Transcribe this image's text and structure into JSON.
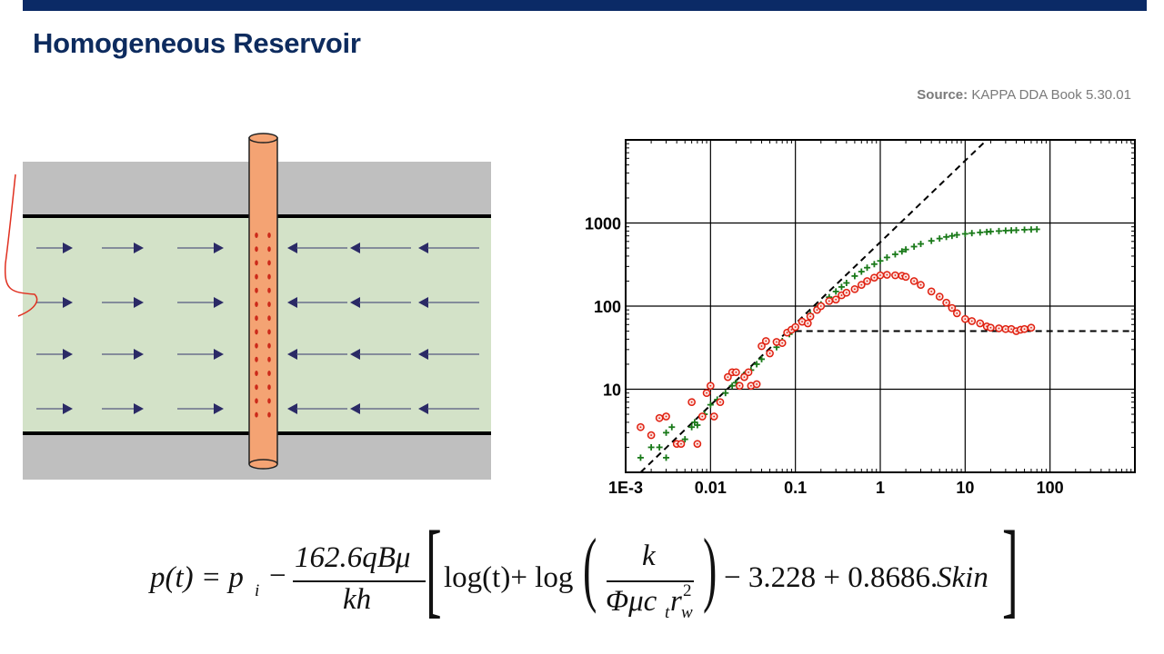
{
  "slide": {
    "title": "Homogeneous Reservoir",
    "source_label": "Source:",
    "source_text": "KAPPA DDA Book 5.30.01"
  },
  "colors": {
    "top_bar": "#0b2a66",
    "title": "#0d2b5e",
    "shale": "#bfbfbf",
    "reservoir": "#d3e2c8",
    "well": "#f4a373",
    "perforations": "#cc2a1a",
    "flow_arrows": "#2b2a66",
    "pressure_series": "#1a7a1a",
    "derivative_series": "#e02010",
    "annotation": "#e03020"
  },
  "diagram": {
    "icons": [
      "well-icon",
      "arrow-right-icon",
      "arrow-left-icon",
      "hand-drawn-bracket-annotation"
    ]
  },
  "formula": {
    "lhs": "p(t) = p",
    "lhs_sub": "i",
    "minus": "−",
    "numerator": "162.6qBμ",
    "denominator": "kh",
    "log_t": "log(t)+ log",
    "inner_numerator": "k",
    "inner_denominator": "Φμc",
    "inner_sub_t": "t",
    "inner_r": "r",
    "inner_sub_w": "w",
    "inner_sup_2": "2",
    "tail": "− 3.228 + 0.8686.",
    "skin": "Skin"
  },
  "chart_data": {
    "type": "scatter",
    "xscale": "log",
    "yscale": "log",
    "xlim": [
      0.001,
      1000
    ],
    "ylim": [
      1,
      10000
    ],
    "grid": true,
    "x_tick_labels": [
      "1E-3",
      "0.01",
      "0.1",
      "1",
      "10",
      "100"
    ],
    "x_ticks": [
      0.001,
      0.01,
      0.1,
      1,
      10,
      100
    ],
    "y_tick_labels": [
      "10",
      "100",
      "1000"
    ],
    "y_ticks": [
      10,
      100,
      1000
    ],
    "series": [
      {
        "marker": "plus",
        "color": "#1a7a1a",
        "points": [
          [
            0.0015,
            1.5
          ],
          [
            0.002,
            2
          ],
          [
            0.0025,
            2
          ],
          [
            0.003,
            1.5
          ],
          [
            0.003,
            3
          ],
          [
            0.0035,
            3.5
          ],
          [
            0.004,
            2.2
          ],
          [
            0.005,
            2.5
          ],
          [
            0.006,
            3.5
          ],
          [
            0.0065,
            4
          ],
          [
            0.007,
            3.7
          ],
          [
            0.0085,
            5
          ],
          [
            0.01,
            6.5
          ],
          [
            0.012,
            7.5
          ],
          [
            0.015,
            9
          ],
          [
            0.018,
            11
          ],
          [
            0.02,
            12
          ],
          [
            0.025,
            15
          ],
          [
            0.03,
            17
          ],
          [
            0.035,
            20
          ],
          [
            0.04,
            23
          ],
          [
            0.05,
            27
          ],
          [
            0.06,
            32
          ],
          [
            0.07,
            38
          ],
          [
            0.085,
            46
          ],
          [
            0.1,
            55
          ],
          [
            0.12,
            65
          ],
          [
            0.15,
            80
          ],
          [
            0.18,
            95
          ],
          [
            0.2,
            105
          ],
          [
            0.25,
            128
          ],
          [
            0.3,
            150
          ],
          [
            0.35,
            170
          ],
          [
            0.4,
            190
          ],
          [
            0.5,
            230
          ],
          [
            0.6,
            260
          ],
          [
            0.7,
            290
          ],
          [
            0.85,
            320
          ],
          [
            1,
            350
          ],
          [
            1.2,
            385
          ],
          [
            1.5,
            420
          ],
          [
            1.8,
            455
          ],
          [
            2,
            480
          ],
          [
            2.5,
            520
          ],
          [
            3,
            560
          ],
          [
            4,
            610
          ],
          [
            5,
            650
          ],
          [
            6,
            680
          ],
          [
            7,
            700
          ],
          [
            8,
            720
          ],
          [
            10,
            740
          ],
          [
            12,
            755
          ],
          [
            15,
            770
          ],
          [
            18,
            780
          ],
          [
            20,
            790
          ],
          [
            25,
            800
          ],
          [
            30,
            810
          ],
          [
            35,
            815
          ],
          [
            40,
            820
          ],
          [
            50,
            830
          ],
          [
            60,
            835
          ],
          [
            70,
            840
          ]
        ]
      },
      {
        "marker": "circle",
        "color": "#e02010",
        "points": [
          [
            0.0015,
            3.5
          ],
          [
            0.002,
            2.8
          ],
          [
            0.0025,
            4.5
          ],
          [
            0.003,
            4.7
          ],
          [
            0.004,
            2.2
          ],
          [
            0.0045,
            2.2
          ],
          [
            0.006,
            7
          ],
          [
            0.007,
            2.2
          ],
          [
            0.008,
            4.7
          ],
          [
            0.009,
            9
          ],
          [
            0.01,
            11
          ],
          [
            0.011,
            4.7
          ],
          [
            0.013,
            7
          ],
          [
            0.016,
            14
          ],
          [
            0.018,
            16
          ],
          [
            0.02,
            16
          ],
          [
            0.022,
            11
          ],
          [
            0.025,
            14
          ],
          [
            0.028,
            16
          ],
          [
            0.03,
            11
          ],
          [
            0.035,
            11.5
          ],
          [
            0.04,
            33
          ],
          [
            0.045,
            38
          ],
          [
            0.05,
            27
          ],
          [
            0.06,
            37
          ],
          [
            0.07,
            36
          ],
          [
            0.08,
            48
          ],
          [
            0.09,
            52
          ],
          [
            0.1,
            56
          ],
          [
            0.12,
            65
          ],
          [
            0.14,
            62
          ],
          [
            0.15,
            75
          ],
          [
            0.18,
            90
          ],
          [
            0.2,
            100
          ],
          [
            0.25,
            115
          ],
          [
            0.3,
            120
          ],
          [
            0.35,
            135
          ],
          [
            0.4,
            145
          ],
          [
            0.5,
            160
          ],
          [
            0.6,
            180
          ],
          [
            0.7,
            200
          ],
          [
            0.85,
            220
          ],
          [
            1,
            235
          ],
          [
            1.2,
            238
          ],
          [
            1.5,
            235
          ],
          [
            1.8,
            232
          ],
          [
            2,
            225
          ],
          [
            2.5,
            200
          ],
          [
            3,
            180
          ],
          [
            4,
            150
          ],
          [
            5,
            130
          ],
          [
            6,
            110
          ],
          [
            7,
            95
          ],
          [
            8,
            82
          ],
          [
            10,
            70
          ],
          [
            12,
            66
          ],
          [
            15,
            62
          ],
          [
            18,
            57
          ],
          [
            20,
            55
          ],
          [
            25,
            54
          ],
          [
            30,
            53
          ],
          [
            35,
            53
          ],
          [
            40,
            50
          ],
          [
            45,
            52
          ],
          [
            50,
            53
          ],
          [
            60,
            55
          ]
        ]
      }
    ],
    "reference_lines": [
      {
        "style": "dashed",
        "kind": "unit-slope",
        "points": [
          [
            0.0015,
            1
          ],
          [
            18,
            10000
          ]
        ]
      },
      {
        "style": "dashed",
        "kind": "horizontal",
        "points": [
          [
            0.1,
            50
          ],
          [
            1000,
            50
          ]
        ]
      }
    ]
  }
}
